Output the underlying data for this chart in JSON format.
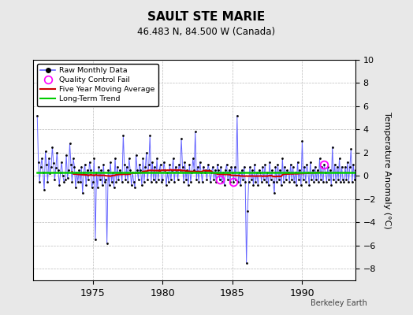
{
  "title": "SAULT STE MARIE",
  "subtitle": "46.483 N, 84.500 W (Canada)",
  "ylabel": "Temperature Anomaly (°C)",
  "credit": "Berkeley Earth",
  "ylim": [
    -9,
    10
  ],
  "yticks": [
    -8,
    -6,
    -4,
    -2,
    0,
    2,
    4,
    6,
    8,
    10
  ],
  "year_start": 1971,
  "year_end": 1993,
  "bg_color": "#e8e8e8",
  "plot_bg_color": "#ffffff",
  "stem_color": "#6666ff",
  "dot_color": "#000000",
  "ma_color": "#cc0000",
  "trend_color": "#00cc00",
  "qc_color": "#ff00ff",
  "raw_monthly_data": [
    5.2,
    1.2,
    -0.5,
    0.8,
    1.5,
    0.3,
    -1.2,
    2.1,
    1.0,
    -0.5,
    1.5,
    0.2,
    0.8,
    2.5,
    1.1,
    -0.3,
    0.7,
    2.0,
    0.5,
    -0.8,
    0.3,
    1.2,
    0.0,
    -0.5,
    -0.3,
    1.8,
    -0.2,
    0.5,
    2.8,
    1.0,
    -0.5,
    1.5,
    0.8,
    -1.0,
    0.3,
    -0.5,
    0.5,
    -0.5,
    0.8,
    -1.5,
    0.3,
    1.0,
    -0.8,
    0.5,
    -0.3,
    1.2,
    0.5,
    -1.0,
    -0.5,
    1.5,
    -5.5,
    0.3,
    -1.0,
    0.8,
    -0.3,
    0.5,
    -0.8,
    1.0,
    -0.5,
    -0.3,
    -5.8,
    0.5,
    -0.8,
    1.2,
    -0.5,
    0.3,
    -1.0,
    1.5,
    -0.5,
    0.8,
    -0.3,
    0.5,
    0.3,
    -0.5,
    3.5,
    1.0,
    -0.3,
    0.8,
    -0.5,
    1.5,
    0.5,
    -0.8,
    0.3,
    -0.5,
    -1.0,
    1.8,
    0.5,
    -0.3,
    1.0,
    0.5,
    -0.8,
    1.5,
    -0.5,
    0.8,
    2.0,
    -0.3,
    1.0,
    3.5,
    -0.5,
    1.2,
    -0.3,
    0.8,
    -0.5,
    1.5,
    -0.3,
    0.5,
    1.0,
    -0.5,
    -0.3,
    1.2,
    0.5,
    -0.8,
    0.3,
    -0.5,
    1.0,
    -0.3,
    0.5,
    1.5,
    -0.5,
    0.8,
    0.5,
    -0.3,
    1.0,
    0.5,
    3.2,
    0.8,
    -0.5,
    1.2,
    -0.3,
    0.5,
    -0.8,
    1.0,
    -0.5,
    0.3,
    1.5,
    0.5,
    3.8,
    -0.3,
    0.8,
    -0.5,
    1.2,
    0.3,
    -0.5,
    0.8,
    0.3,
    0.5,
    -0.3,
    1.0,
    0.5,
    -0.5,
    0.3,
    0.8,
    -0.3,
    0.5,
    -0.5,
    1.0,
    0.5,
    -0.3,
    0.8,
    -0.5,
    0.3,
    -0.8,
    0.5,
    1.0,
    -0.3,
    0.5,
    -0.5,
    0.8,
    0.3,
    -0.5,
    0.8,
    -0.3,
    5.2,
    -0.5,
    0.3,
    -0.8,
    0.5,
    -0.3,
    0.8,
    -0.5,
    -7.5,
    -3.0,
    -0.5,
    0.8,
    -0.3,
    0.5,
    -0.8,
    1.0,
    -0.5,
    0.3,
    -0.8,
    0.5,
    0.3,
    -0.5,
    0.8,
    -0.3,
    1.0,
    -0.5,
    0.3,
    -0.8,
    1.2,
    -0.3,
    0.5,
    -0.5,
    -1.5,
    0.8,
    -0.5,
    1.0,
    -0.3,
    0.5,
    -0.8,
    1.5,
    -0.5,
    0.8,
    -0.3,
    0.5,
    0.3,
    -0.5,
    1.0,
    -0.3,
    0.8,
    -0.5,
    0.3,
    -0.8,
    1.2,
    -0.3,
    0.5,
    -0.8,
    3.0,
    -0.3,
    0.8,
    -0.5,
    1.0,
    0.3,
    -0.8,
    1.2,
    -0.3,
    0.5,
    -0.5,
    0.8,
    -0.3,
    0.5,
    -0.5,
    1.5,
    -0.3,
    0.8,
    -0.5,
    1.0,
    0.3,
    -0.5,
    0.8,
    -0.3,
    0.5,
    -0.8,
    2.5,
    -0.3,
    1.0,
    -0.5,
    0.8,
    -0.3,
    1.5,
    -0.5,
    0.8,
    -0.3,
    -0.5,
    0.8,
    -0.3,
    1.2,
    -0.5,
    0.8,
    2.3,
    -0.5,
    1.0,
    -0.3,
    0.5,
    -0.8
  ],
  "qc_fail_indices": [
    157,
    169,
    247
  ],
  "xticks": [
    1975,
    1980,
    1985,
    1990
  ]
}
